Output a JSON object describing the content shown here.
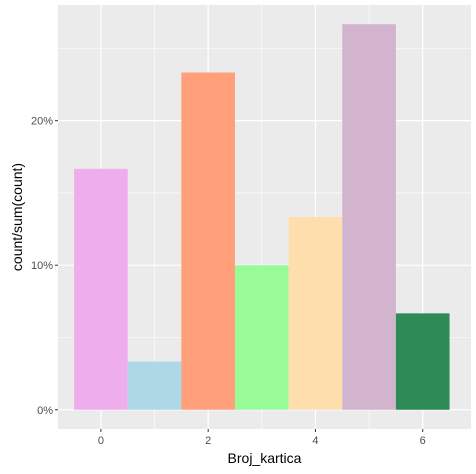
{
  "chart_data": {
    "type": "bar",
    "x": [
      0,
      1,
      2,
      3,
      4,
      5,
      6
    ],
    "values": [
      16.67,
      3.33,
      23.33,
      10.0,
      13.33,
      26.67,
      6.67
    ],
    "colors": [
      "#EEAEEE",
      "#ADD8E6",
      "#FFA07A",
      "#98FB98",
      "#FFDEAD",
      "#D2B4CE",
      "#2E8B57"
    ],
    "xlabel": "Broj_kartica",
    "ylabel": "count/sum(count)",
    "xlim": [
      -0.8,
      6.9
    ],
    "ylim": [
      -1.33,
      28.0
    ],
    "x_ticks": [
      0,
      2,
      4,
      6
    ],
    "x_tick_labels": [
      "0",
      "2",
      "4",
      "6"
    ],
    "x_minor_ticks": [
      1,
      3,
      5
    ],
    "y_ticks": [
      0,
      10,
      20
    ],
    "y_tick_labels": [
      "0%",
      "10%",
      "20%"
    ],
    "y_minor_ticks": [
      5,
      15,
      25
    ],
    "grid": true,
    "panel_background": "#EBEBEB",
    "grid_color": "#FFFFFF"
  }
}
